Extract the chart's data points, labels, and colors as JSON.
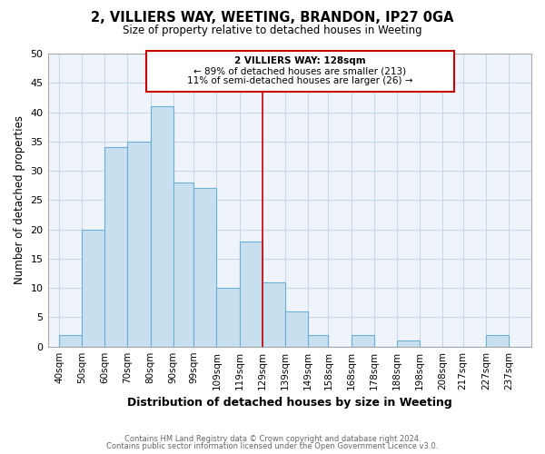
{
  "title": "2, VILLIERS WAY, WEETING, BRANDON, IP27 0GA",
  "subtitle": "Size of property relative to detached houses in Weeting",
  "xlabel": "Distribution of detached houses by size in Weeting",
  "ylabel": "Number of detached properties",
  "bar_labels": [
    "40sqm",
    "50sqm",
    "60sqm",
    "70sqm",
    "80sqm",
    "90sqm",
    "99sqm",
    "109sqm",
    "119sqm",
    "129sqm",
    "139sqm",
    "149sqm",
    "158sqm",
    "168sqm",
    "178sqm",
    "188sqm",
    "198sqm",
    "208sqm",
    "217sqm",
    "227sqm",
    "237sqm"
  ],
  "bar_values": [
    2,
    20,
    34,
    35,
    41,
    28,
    27,
    10,
    18,
    11,
    6,
    2,
    0,
    2,
    0,
    1,
    0,
    0,
    0,
    2,
    0
  ],
  "bin_edges": [
    40,
    50,
    60,
    70,
    80,
    90,
    99,
    109,
    119,
    129,
    139,
    149,
    158,
    168,
    178,
    188,
    198,
    208,
    217,
    227,
    237,
    247
  ],
  "bar_color": "#c8dff0",
  "bar_edge_color": "#6aafd6",
  "property_line_x": 129,
  "xlim_left": 35,
  "xlim_right": 247,
  "ylim": [
    0,
    50
  ],
  "annotation_title": "2 VILLIERS WAY: 128sqm",
  "annotation_line1": "← 89% of detached houses are smaller (213)",
  "annotation_line2": "11% of semi-detached houses are larger (26) →",
  "annotation_box_color": "#ffffff",
  "annotation_box_edge": "#cc0000",
  "property_line_color": "#cc0000",
  "footer_line1": "Contains HM Land Registry data © Crown copyright and database right 2024.",
  "footer_line2": "Contains public sector information licensed under the Open Government Licence v3.0.",
  "grid_color": "#c8d8e8",
  "background_color": "#ffffff",
  "plot_bg_color": "#eef4fa"
}
